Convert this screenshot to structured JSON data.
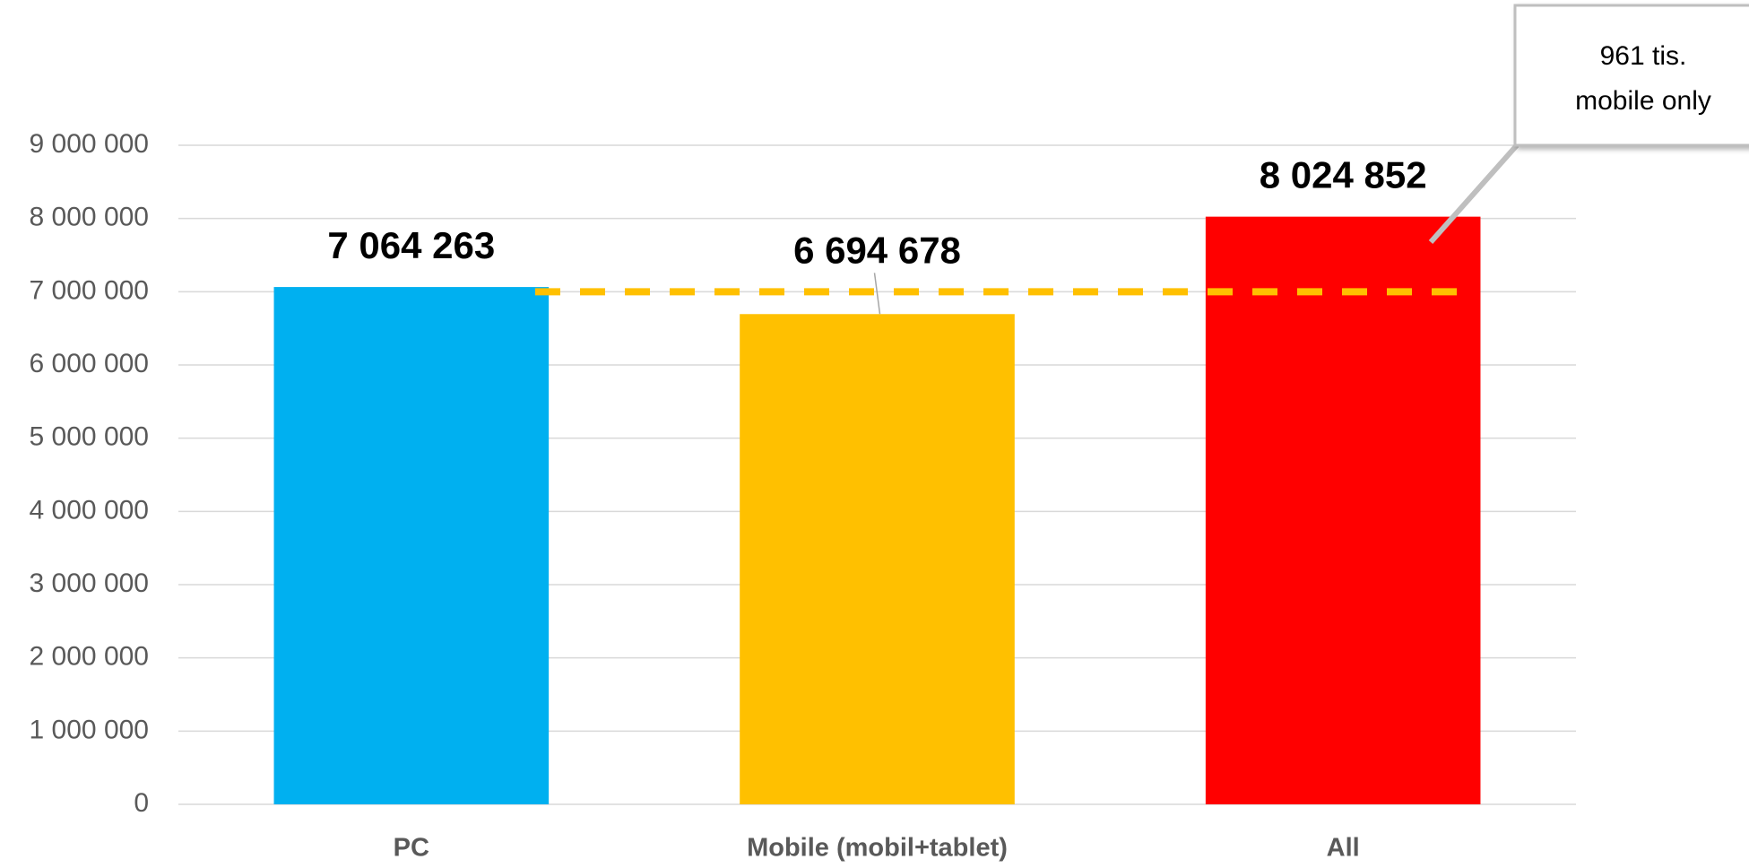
{
  "chart_data": {
    "type": "bar",
    "categories": [
      "PC",
      "Mobile (mobil+tablet)",
      "All"
    ],
    "values": [
      7064263,
      6694678,
      8024852
    ],
    "value_labels": [
      "7 064 263",
      "6 694 678",
      "8 024 852"
    ],
    "colors": [
      "#00b0f0",
      "#ffc000",
      "#ff0000"
    ],
    "ylim": [
      0,
      9000000
    ],
    "yticks": [
      0,
      {
        "value": 1000000,
        "label": "1 000 000"
      },
      {
        "value": 2000000,
        "label": "2 000 000"
      },
      {
        "value": 3000000,
        "label": "3 000 000"
      },
      {
        "value": 4000000,
        "label": "4 000 000"
      },
      {
        "value": 5000000,
        "label": "5 000 000"
      },
      {
        "value": 6000000,
        "label": "6 000 000"
      },
      {
        "value": 7000000,
        "label": "7 000 000"
      },
      {
        "value": 8000000,
        "label": "8 000 000"
      },
      {
        "value": 9000000,
        "label": "9 000 000"
      }
    ],
    "grid": true,
    "reference_line": {
      "value": 7000000,
      "color": "#ffc000"
    },
    "annotation": [
      "961 tis.",
      "mobile only"
    ]
  }
}
